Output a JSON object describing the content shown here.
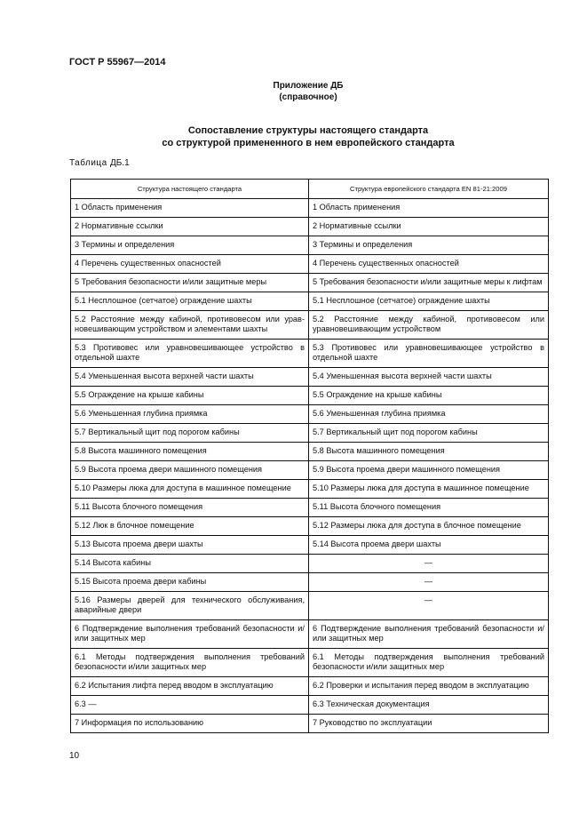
{
  "header": {
    "doc_code": "ГОСТ Р 55967—2014"
  },
  "annex": {
    "title": "Приложение ДБ",
    "subtitle": "(справочное)"
  },
  "title": {
    "line1": "Сопоставление структуры настоящего стандарта",
    "line2": "со структурой примененного в нем европейского стандарта"
  },
  "table_caption": {
    "label": "Таблица",
    "number": "ДБ.1"
  },
  "table": {
    "columns": [
      "Структура настоящего стандарта",
      "Структура европейского стандарта EN 81-21:2009"
    ],
    "rows": [
      [
        "1 Область применения",
        "1 Область применения"
      ],
      [
        "2 Нормативные ссылки",
        "2 Нормативные ссылки"
      ],
      [
        "3 Термины и определения",
        "3 Термины и определения"
      ],
      [
        "4 Перечень существенных опасностей",
        "4 Перечень существенных опасностей"
      ],
      [
        "5 Требования безопасности и/или защитные меры",
        "5 Требования безопасности и/или защитные меры к лифтам"
      ],
      [
        "5.1 Несплошное (сетчатое) ограждение шахты",
        "5.1 Несплошное (сетчатое) ограждение шахты"
      ],
      [
        "5.2 Расстояние между кабиной, противовесом или урав­новешивающим устройством и элементами шахты",
        "5.2 Расстояние между кабиной, противовесом или уравновешивающим устройством"
      ],
      [
        "5.3 Противовес или уравновешивающее устройство в отдельной шахте",
        "5.3 Противовес или уравновешивающее устройство в отдельной шахте"
      ],
      [
        "5.4 Уменьшенная высота верхней части шахты",
        "5.4 Уменьшенная высота верхней части шахты"
      ],
      [
        "5.5 Ограждение на крыше кабины",
        "5.5 Ограждение на крыше кабины"
      ],
      [
        "5.6 Уменьшенная глубина приямка",
        "5.6 Уменьшенная глубина приямка"
      ],
      [
        "5.7 Вертикальный щит под порогом кабины",
        "5.7 Вертикальный щит под порогом кабины"
      ],
      [
        "5.8 Высота машинного помещения",
        "5.8 Высота машинного помещения"
      ],
      [
        "5.9 Высота проема двери машинного помещения",
        "5.9 Высота проема двери машинного помещения"
      ],
      [
        "5.10 Размеры люка для доступа в машинное поме­щение",
        "5.10 Размеры люка для доступа в машинное поме­щение"
      ],
      [
        "5.11 Высота блочного помещения",
        "5.11 Высота блочного помещения"
      ],
      [
        "5.12 Люк в блочное помещение",
        "5.12 Размеры люка для доступа в блочное помещение"
      ],
      [
        "5.13 Высота проема двери шахты",
        "5.14 Высота проема двери шахты"
      ],
      [
        "5.14 Высота кабины",
        "—"
      ],
      [
        "5.15 Высота проема двери кабины",
        "—"
      ],
      [
        "5.16 Размеры дверей для технического обслуживания, аварийные двери",
        "—"
      ],
      [
        "6 Подтверждение выполнения требований безопасно­сти и/или защитных мер",
        "6 Подтверждение выполнения требований безопасно­сти и/или защитных мер"
      ],
      [
        "6.1 Методы подтверждения выполнения требований безопасности и/или защитных мер",
        "6.1 Методы подтверждения выполнения требований безопасности и/или защитных мер"
      ],
      [
        "6.2 Испытания лифта перед вводом в эксплуатацию",
        "6.2 Проверки и испытания перед вводом в эксплуа­тацию"
      ],
      [
        "6.3 —",
        "6.3 Техническая документация"
      ],
      [
        "7 Информация по использованию",
        "7 Руководство по эксплуатации"
      ]
    ]
  },
  "footer": {
    "page_number": "10"
  }
}
